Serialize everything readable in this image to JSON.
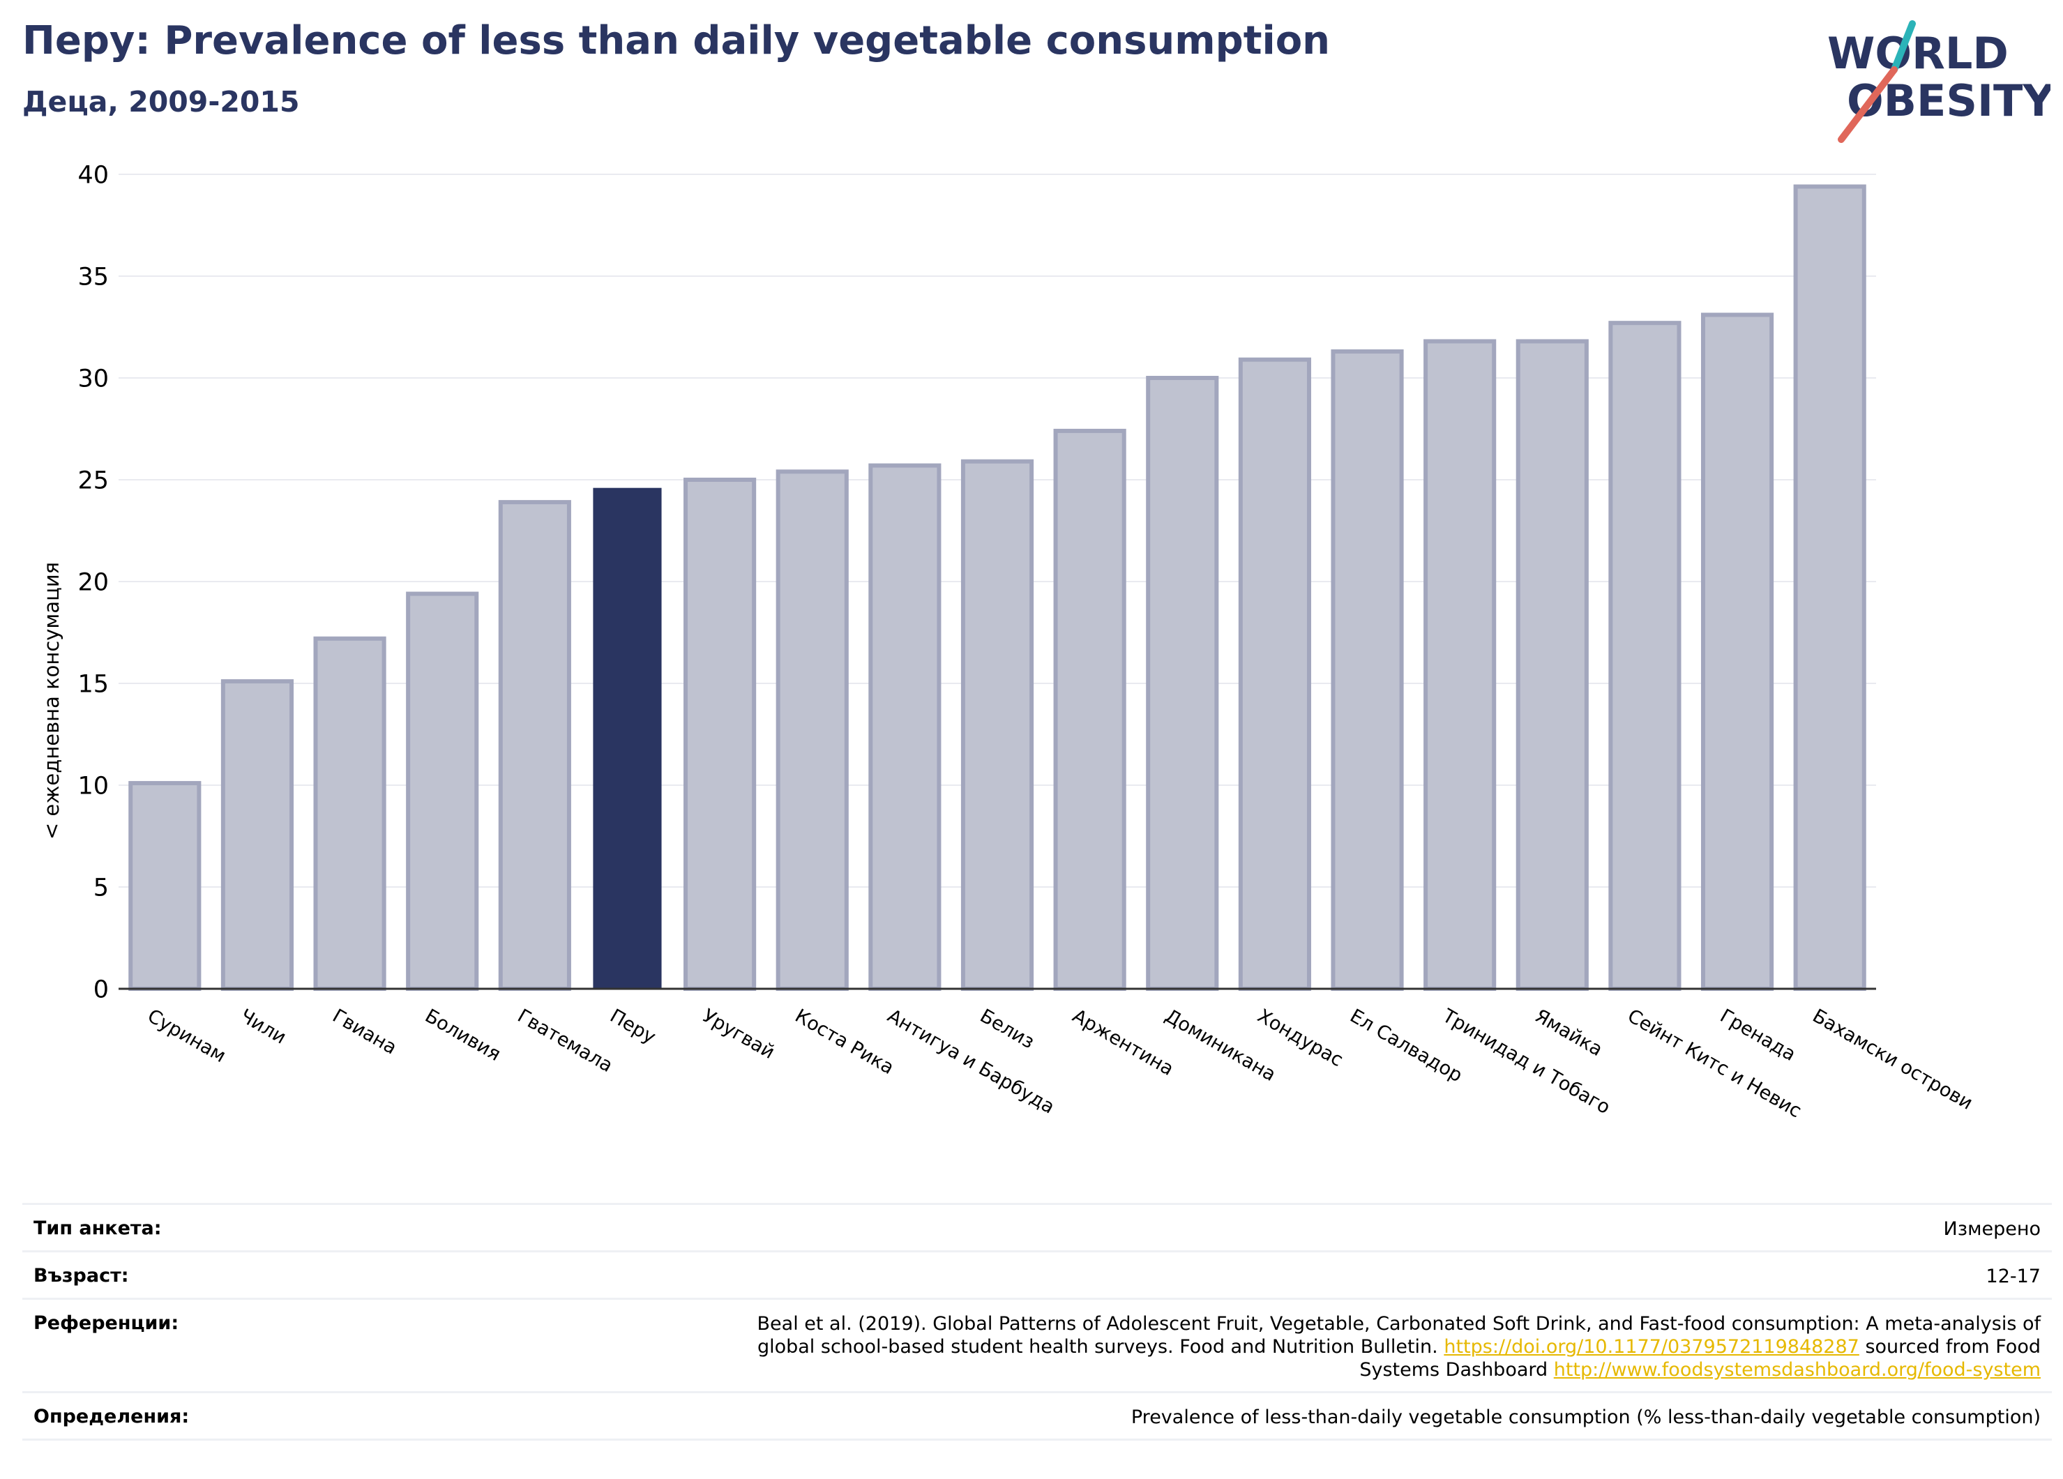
{
  "header": {
    "title": "Перу: Prevalence of less than daily vegetable consumption",
    "subtitle": "Деца, 2009-2015",
    "logo_line1": "WORLD",
    "logo_line2": "OBESITY"
  },
  "colors": {
    "highlight": "#2a3561",
    "bar": "#bfc2d0",
    "bar_edge": "#a2a6bd",
    "title": "#2a3561",
    "link": "#e6b800",
    "logo_teal": "#2bb3b8",
    "logo_red": "#e0675a"
  },
  "chart_data": {
    "type": "bar",
    "title": "Перу: Prevalence of less than daily vegetable consumption",
    "subtitle": "Деца, 2009-2015",
    "xlabel": "",
    "ylabel": "< ежедневна консумация",
    "ylim": [
      0,
      40
    ],
    "yticks": [
      0,
      5,
      10,
      15,
      20,
      25,
      30,
      35,
      40
    ],
    "grid": true,
    "highlight_category": "Перу",
    "categories": [
      "Суринам",
      "Чили",
      "Гвиана",
      "Боливия",
      "Гватемала",
      "Перу",
      "Уругвай",
      "Коста Рика",
      "Антигуа и Барбуда",
      "Белиз",
      "Аржентина",
      "Доминикана",
      "Хондурас",
      "Ел Салвадор",
      "Тринидад и Тобаго",
      "Ямайка",
      "Сейнт Китс и Невис",
      "Гренада",
      "Бахамски острови"
    ],
    "values": [
      10.1,
      15.1,
      17.2,
      19.4,
      23.9,
      24.6,
      25.0,
      25.4,
      25.7,
      25.9,
      27.4,
      30.0,
      30.9,
      31.3,
      31.8,
      31.8,
      32.7,
      33.1,
      39.4
    ]
  },
  "info": {
    "survey_label": "Тип анкета:",
    "survey_value": "Измерено",
    "age_label": "Възраст:",
    "age_value": "12-17",
    "refs_label": "Референции:",
    "refs_line1": "Beal et al. (2019). Global Patterns of Adolescent Fruit, Vegetable, Carbonated Soft Drink, and Fast-food consumption: A meta-analysis of",
    "refs_line2": "global school-based student health surveys. Food and Nutrition Bulletin. ",
    "refs_link1": "https://doi.org/10.1177/0379572119848287",
    "refs_line2b": " sourced from Food",
    "refs_line3": "Systems Dashboard ",
    "refs_link2": "http://www.foodsystemsdashboard.org/food-system",
    "defs_label": "Определения:",
    "defs_value": "Prevalence of less-than-daily vegetable consumption (% less-than-daily vegetable consumption)"
  }
}
